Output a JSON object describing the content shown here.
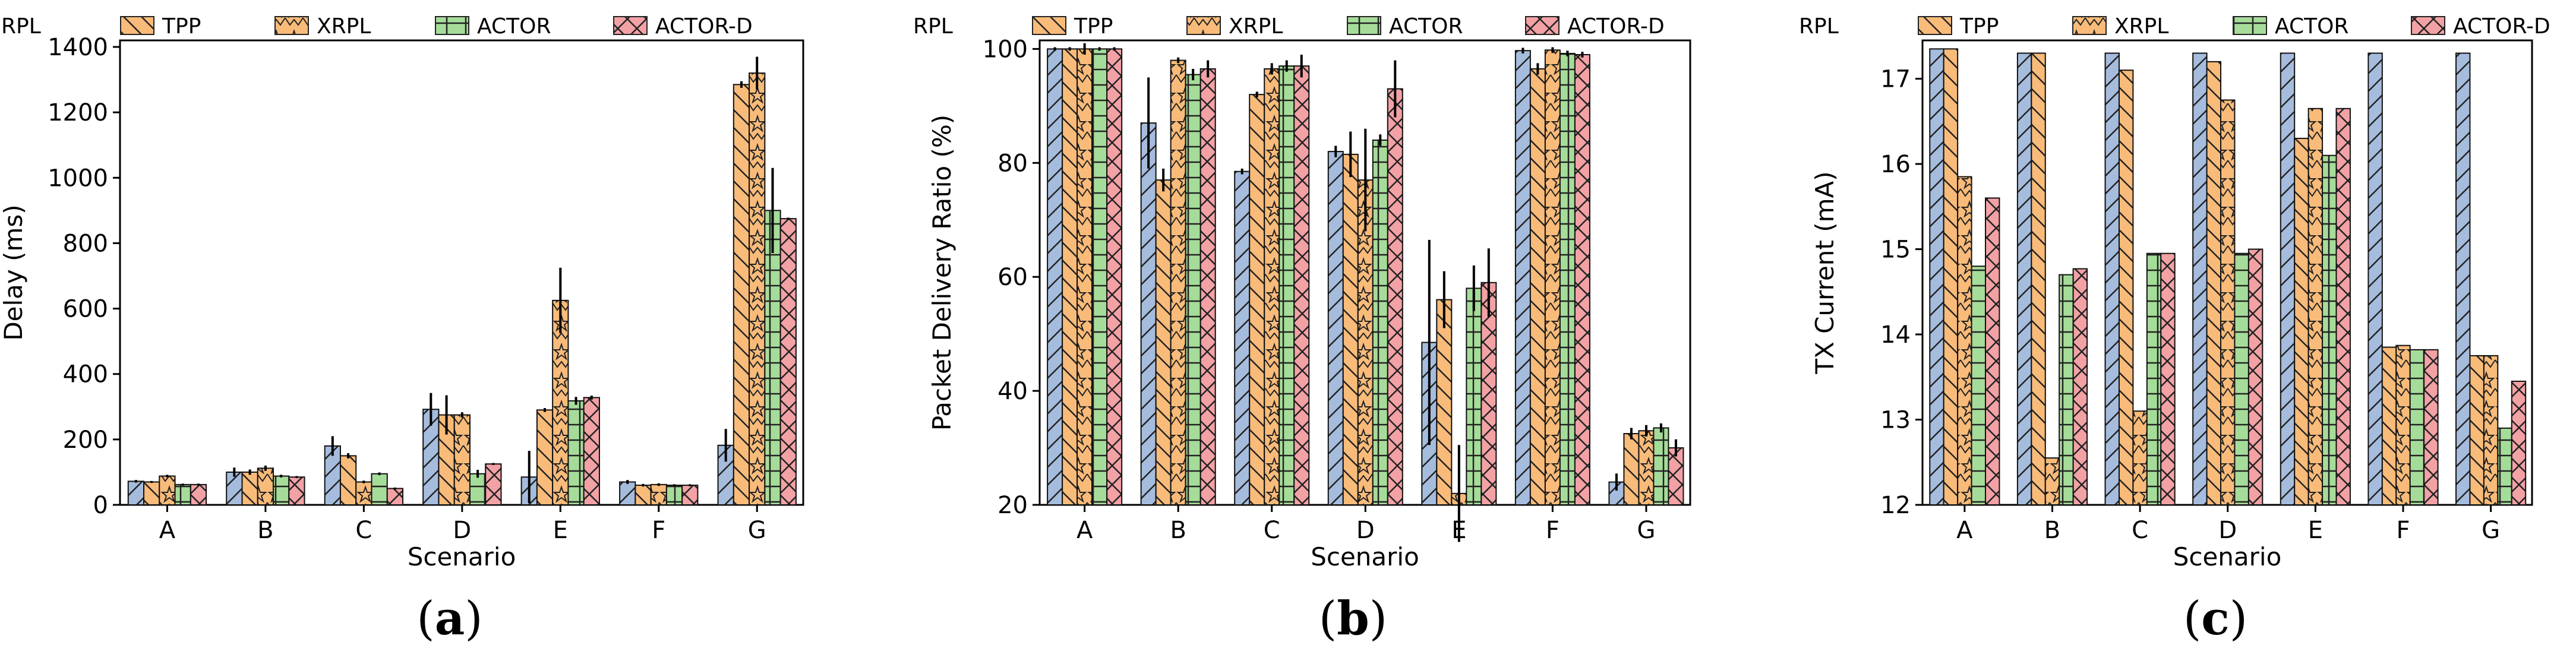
{
  "styles": {
    "RPL": {
      "fill": "#a5bcdd",
      "pattern": "diag"
    },
    "TPP": {
      "fill": "#f8bb7a",
      "pattern": "back"
    },
    "XRPL": {
      "fill": "#f8bb7a",
      "pattern": "star"
    },
    "ACTOR": {
      "fill": "#a6dc9a",
      "pattern": "grid"
    },
    "ACTOR-D": {
      "fill": "#f2a1a5",
      "pattern": "cross"
    }
  },
  "chart_data": [
    {
      "type": "bar",
      "panel_label": "a",
      "xlabel": "Scenario",
      "ylabel": "Delay (ms)",
      "ylim": [
        0,
        1420
      ],
      "yticks": [
        0,
        200,
        400,
        600,
        800,
        1000,
        1200,
        1400
      ],
      "categories": [
        "A",
        "B",
        "C",
        "D",
        "E",
        "F",
        "G"
      ],
      "legend": [
        "RPL",
        "TPP",
        "XRPL",
        "ACTOR",
        "ACTOR-D"
      ],
      "series": [
        {
          "name": "RPL",
          "values": [
            72,
            100,
            180,
            292,
            85,
            70,
            182
          ],
          "errors": [
            4,
            14,
            30,
            50,
            80,
            6,
            50
          ]
        },
        {
          "name": "TPP",
          "values": [
            70,
            100,
            150,
            275,
            290,
            60,
            1285
          ],
          "errors": [
            3,
            8,
            8,
            60,
            6,
            4,
            10
          ]
        },
        {
          "name": "XRPL",
          "values": [
            88,
            112,
            70,
            275,
            625,
            62,
            1320
          ],
          "errors": [
            4,
            8,
            4,
            8,
            100,
            4,
            50
          ]
        },
        {
          "name": "ACTOR",
          "values": [
            62,
            88,
            95,
            95,
            318,
            60,
            900
          ],
          "errors": [
            3,
            4,
            4,
            12,
            12,
            3,
            130
          ]
        },
        {
          "name": "ACTOR-D",
          "values": [
            62,
            85,
            50,
            125,
            328,
            60,
            875
          ],
          "errors": [
            3,
            3,
            3,
            3,
            6,
            3,
            3
          ]
        }
      ]
    },
    {
      "type": "bar",
      "panel_label": "b",
      "xlabel": "Scenario",
      "ylabel": "Packet Delivery Ratio (%)",
      "ylim": [
        20,
        101.5
      ],
      "yticks": [
        20,
        40,
        60,
        80,
        100
      ],
      "categories": [
        "A",
        "B",
        "C",
        "D",
        "E",
        "F",
        "G"
      ],
      "legend": [
        "RPL",
        "TPP",
        "XRPL",
        "ACTOR",
        "ACTOR-D"
      ],
      "series": [
        {
          "name": "RPL",
          "values": [
            100,
            87,
            78.5,
            82,
            48.5,
            99.7,
            24
          ],
          "errors": [
            0.3,
            8,
            0.5,
            1,
            18,
            0.5,
            1.5
          ]
        },
        {
          "name": "TPP",
          "values": [
            100,
            77,
            92,
            81.5,
            56,
            96.5,
            32.5
          ],
          "errors": [
            0.3,
            2,
            0.5,
            4,
            5,
            1,
            1
          ]
        },
        {
          "name": "XRPL",
          "values": [
            100,
            98,
            96.5,
            77,
            22,
            99.8,
            33
          ],
          "errors": [
            1,
            0.5,
            1,
            9,
            8.5,
            0.5,
            1
          ]
        },
        {
          "name": "ACTOR",
          "values": [
            100,
            95.5,
            97,
            84,
            58,
            99.2,
            33.5
          ],
          "errors": [
            0.3,
            1,
            1,
            1,
            4,
            0.5,
            0.8
          ]
        },
        {
          "name": "ACTOR-D",
          "values": [
            100,
            96.5,
            97,
            93,
            59,
            99,
            30
          ],
          "errors": [
            0.3,
            1.5,
            2,
            5,
            6,
            0.5,
            1.5
          ]
        }
      ]
    },
    {
      "type": "bar",
      "panel_label": "c",
      "xlabel": "Scenario",
      "ylabel": "TX Current (mA)",
      "ylim": [
        12,
        17.45
      ],
      "yticks": [
        12,
        13,
        14,
        15,
        16,
        17
      ],
      "categories": [
        "A",
        "B",
        "C",
        "D",
        "E",
        "F",
        "G"
      ],
      "legend": [
        "RPL",
        "TPP",
        "XRPL",
        "ACTOR",
        "ACTOR-D"
      ],
      "series": [
        {
          "name": "RPL",
          "values": [
            17.35,
            17.3,
            17.3,
            17.3,
            17.3,
            17.3,
            17.3
          ]
        },
        {
          "name": "TPP",
          "values": [
            17.35,
            17.3,
            17.1,
            17.2,
            16.3,
            13.85,
            13.75
          ]
        },
        {
          "name": "XRPL",
          "values": [
            15.85,
            12.55,
            13.1,
            16.75,
            16.65,
            13.87,
            13.75
          ]
        },
        {
          "name": "ACTOR",
          "values": [
            14.8,
            14.7,
            14.95,
            14.95,
            16.1,
            13.82,
            12.9
          ]
        },
        {
          "name": "ACTOR-D",
          "values": [
            15.6,
            14.77,
            14.95,
            15.0,
            16.65,
            13.82,
            13.45
          ]
        }
      ]
    }
  ]
}
